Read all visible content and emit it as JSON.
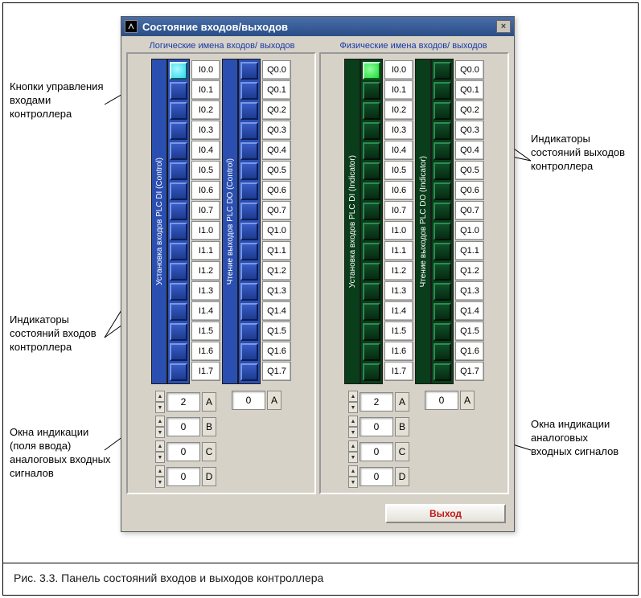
{
  "window": {
    "title": "Состояние входов/выходов",
    "section_logical": "Логические имена входов/ выходов",
    "section_physical": "Физические имена входов/ выходов",
    "exit_label": "Выход",
    "colors": {
      "titlebar_from": "#4a6ea8",
      "titlebar_to": "#2a4d86",
      "panel_bg": "#d6d2c8",
      "blue_bar": "#2b4fb0",
      "green_bar": "#0a3d1a",
      "header_text": "#1a36a8",
      "exit_text": "#c01818"
    }
  },
  "vert_labels": {
    "di_control": "Установка входов PLC DI (Control)",
    "do_control": "Чтение выходов PLC DO (Control)",
    "di_indicator": "Установка входов PLC DI (Indicator)",
    "do_indicator": "Чтение выходов PLC DO (Indicator)"
  },
  "i_labels": [
    "I0.0",
    "I0.1",
    "I0.2",
    "I0.3",
    "I0.4",
    "I0.5",
    "I0.6",
    "I0.7",
    "I1.0",
    "I1.1",
    "I1.2",
    "I1.3",
    "I1.4",
    "I1.5",
    "I1.6",
    "I1.7"
  ],
  "q_labels": [
    "Q0.0",
    "Q0.1",
    "Q0.2",
    "Q0.3",
    "Q0.4",
    "Q0.5",
    "Q0.6",
    "Q0.7",
    "Q1.0",
    "Q1.1",
    "Q1.2",
    "Q1.3",
    "Q1.4",
    "Q1.5",
    "Q1.6",
    "Q1.7"
  ],
  "states": {
    "logical_di": [
      true,
      false,
      false,
      false,
      false,
      false,
      false,
      false,
      false,
      false,
      false,
      false,
      false,
      false,
      false,
      false
    ],
    "logical_do": [
      false,
      false,
      false,
      false,
      false,
      false,
      false,
      false,
      false,
      false,
      false,
      false,
      false,
      false,
      false,
      false
    ],
    "physical_di": [
      true,
      false,
      false,
      false,
      false,
      false,
      false,
      false,
      false,
      false,
      false,
      false,
      false,
      false,
      false,
      false
    ],
    "physical_do": [
      false,
      false,
      false,
      false,
      false,
      false,
      false,
      false,
      false,
      false,
      false,
      false,
      false,
      false,
      false,
      false
    ]
  },
  "analog": {
    "logical_di": [
      {
        "v": "2",
        "l": "A"
      },
      {
        "v": "0",
        "l": "B"
      },
      {
        "v": "0",
        "l": "C"
      },
      {
        "v": "0",
        "l": "D"
      }
    ],
    "logical_do": [
      {
        "v": "0",
        "l": "A"
      }
    ],
    "physical_di": [
      {
        "v": "2",
        "l": "A"
      },
      {
        "v": "0",
        "l": "B"
      },
      {
        "v": "0",
        "l": "C"
      },
      {
        "v": "0",
        "l": "D"
      }
    ],
    "physical_do": [
      {
        "v": "0",
        "l": "A"
      }
    ]
  },
  "callouts": {
    "c1": "Кнопки управления входами контроллера",
    "c2": "Индикаторы состояний входов контроллера",
    "c3": "Окна индикации (поля ввода) аналоговых входных сигналов",
    "c4": "Индикаторы состояний выходов контроллера",
    "c5": "Окна индикации аналоговых входных сигналов"
  },
  "caption": "Рис. 3.3. Панель состояний входов и выходов контроллера"
}
